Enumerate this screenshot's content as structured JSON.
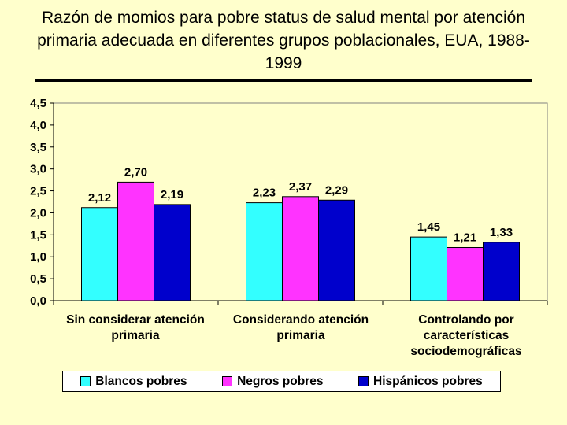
{
  "title": "Razón de momios para pobre status de salud mental por atención primaria adecuada en diferentes grupos poblacionales, EUA, 1988-1999",
  "chart_data": {
    "type": "bar",
    "title": "Razón de momios para pobre status de salud mental por atención primaria adecuada en diferentes grupos poblacionales, EUA, 1988-1999",
    "categories": [
      "Sin considerar atención primaria",
      "Considerando atención primaria",
      "Controlando por características sociodemográficas"
    ],
    "series": [
      {
        "name": "Blancos pobres",
        "color": "#33ffff",
        "values": [
          2.12,
          2.23,
          1.45
        ],
        "labels": [
          "2,12",
          "2,23",
          "1,45"
        ]
      },
      {
        "name": "Negros pobres",
        "color": "#ff33ff",
        "values": [
          2.7,
          2.37,
          1.21
        ],
        "labels": [
          "2,70",
          "2,37",
          "1,21"
        ]
      },
      {
        "name": "Hispánicos pobres",
        "color": "#0000cc",
        "values": [
          2.19,
          2.29,
          1.33
        ],
        "labels": [
          "2,19",
          "2,29",
          "1,33"
        ]
      }
    ],
    "ylim": [
      0,
      4.5
    ],
    "yticks": [
      0,
      0.5,
      1.0,
      1.5,
      2.0,
      2.5,
      3.0,
      3.5,
      4.0,
      4.5
    ],
    "ytick_labels": [
      "0,0",
      "0,5",
      "1,0",
      "1,5",
      "2,0",
      "2,5",
      "3,0",
      "3,5",
      "4,0",
      "4,5"
    ],
    "xlabel": "",
    "ylabel": "",
    "legend_position": "bottom"
  }
}
